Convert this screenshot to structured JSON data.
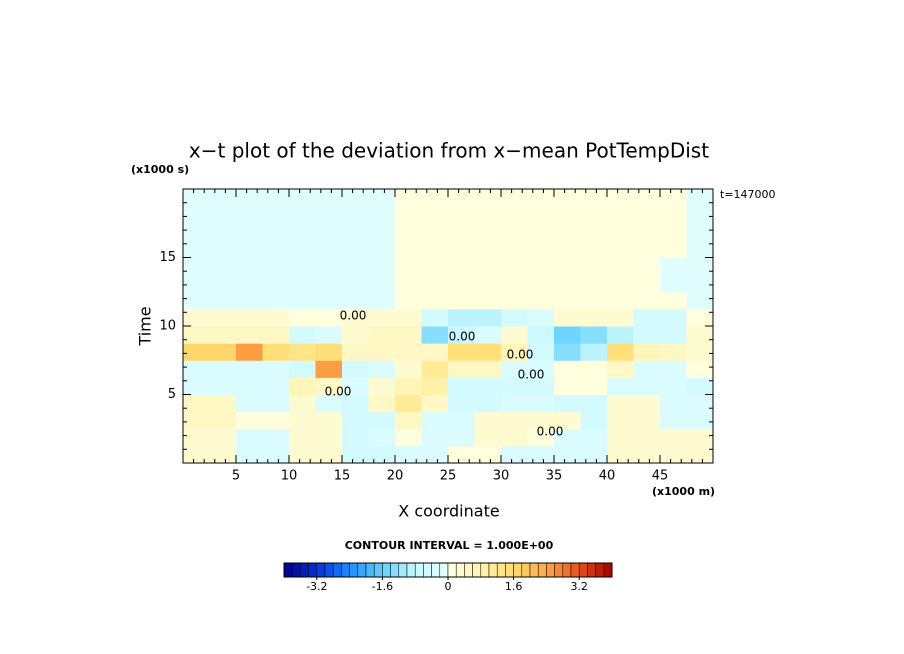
{
  "chart_data": {
    "type": "heatmap",
    "title": "x−t plot of the deviation from x−mean PotTempDist",
    "x_label": "X coordinate",
    "x_unit": "(x1000 m)",
    "y_label": "Time",
    "y_unit": "(x1000 s)",
    "time_stamp": "t=147000",
    "contour_interval": "CONTOUR INTERVAL = 1.000E+00",
    "contour_labels": [
      "0.00",
      "0.00",
      "0.00",
      "0.00",
      "0.00",
      "0.00"
    ],
    "xlim": [
      0,
      50
    ],
    "ylim": [
      0,
      20
    ],
    "xticks": [
      5,
      10,
      15,
      20,
      25,
      30,
      35,
      40,
      45
    ],
    "yticks": [
      5,
      10,
      15
    ],
    "x": [
      1.25,
      3.75,
      6.25,
      8.75,
      11.25,
      13.75,
      16.25,
      18.75,
      21.25,
      23.75,
      26.25,
      28.75,
      31.25,
      33.75,
      36.25,
      38.75,
      41.25,
      43.75,
      46.25,
      48.75
    ],
    "y": [
      0.625,
      1.875,
      3.125,
      4.375,
      5.625,
      6.875,
      8.125,
      9.375,
      10.625,
      11.875,
      13.125,
      14.375,
      15.625,
      16.875,
      18.125,
      19.375
    ],
    "z": [
      [
        0.2,
        0.2,
        -0.4,
        -0.4,
        0.2,
        0.2,
        -0.5,
        -0.5,
        -0.2,
        -0.2,
        0.1,
        0.1,
        -0.2,
        -0.2,
        -0.3,
        -0.3,
        0.2,
        0.2,
        0.3,
        0.3
      ],
      [
        0.3,
        0.3,
        -0.3,
        -0.3,
        0.3,
        0.3,
        -0.5,
        -0.3,
        0.1,
        -0.4,
        -0.4,
        0.3,
        0.3,
        0.1,
        -0.3,
        -0.3,
        0.3,
        0.3,
        0.2,
        0.2
      ],
      [
        0.5,
        0.5,
        0.1,
        0.1,
        0.3,
        0.3,
        -0.5,
        -0.5,
        0.4,
        -0.4,
        -0.4,
        0.2,
        0.2,
        0.3,
        0.3,
        -0.5,
        0.2,
        0.2,
        -0.3,
        -0.3
      ],
      [
        0.4,
        0.4,
        -0.3,
        -0.3,
        0.3,
        -0.2,
        -0.6,
        0.6,
        1.0,
        0.5,
        -0.5,
        -0.5,
        -0.2,
        -0.2,
        -0.6,
        -0.6,
        0.2,
        0.2,
        -0.4,
        -0.4
      ],
      [
        -0.2,
        -0.2,
        -0.2,
        -0.2,
        0.8,
        0.4,
        -0.3,
        0.3,
        0.8,
        0.9,
        -0.6,
        -0.6,
        -0.6,
        -0.6,
        0.1,
        0.1,
        -0.3,
        -0.3,
        -0.4,
        -0.5
      ],
      [
        -0.3,
        -0.3,
        -0.3,
        -0.3,
        -0.6,
        2.4,
        -0.5,
        -0.2,
        0.3,
        1.0,
        0.6,
        0.4,
        -0.3,
        -0.3,
        0.1,
        0.1,
        0.6,
        -0.3,
        -0.3,
        0.1
      ],
      [
        1.8,
        1.8,
        2.5,
        1.6,
        1.2,
        1.5,
        0.5,
        0.4,
        0.4,
        0.6,
        1.5,
        1.5,
        0.8,
        -0.6,
        -1.2,
        -1.0,
        1.5,
        0.8,
        0.6,
        0.2
      ],
      [
        0.6,
        0.6,
        0.5,
        0.5,
        -0.6,
        -0.4,
        0.3,
        0.5,
        0.5,
        -1.2,
        -0.8,
        -0.3,
        0.3,
        -0.8,
        -1.5,
        -1.2,
        -1.0,
        -0.6,
        -0.5,
        0.2
      ],
      [
        0.3,
        0.3,
        0.3,
        0.3,
        0.1,
        0.1,
        0.2,
        0.3,
        0.3,
        -0.5,
        -1.0,
        -1.0,
        -0.5,
        -0.3,
        0.2,
        0.2,
        0.2,
        -0.5,
        -0.5,
        0.1
      ],
      [
        -0.1,
        -0.1,
        -0.1,
        -0.1,
        -0.1,
        -0.1,
        -0.1,
        -0.1,
        0.1,
        0.1,
        0.1,
        0.1,
        0.1,
        0.1,
        0.1,
        0.1,
        0.1,
        0.1,
        0.1,
        -0.1
      ],
      [
        -0.1,
        -0.1,
        -0.1,
        -0.1,
        -0.1,
        -0.1,
        -0.1,
        -0.1,
        0.1,
        0.1,
        0.1,
        0.1,
        0.1,
        0.1,
        0.1,
        0.1,
        0.1,
        0.1,
        -0.1,
        -0.1
      ],
      [
        -0.1,
        -0.1,
        -0.1,
        -0.1,
        -0.1,
        -0.1,
        -0.1,
        -0.1,
        0.1,
        0.1,
        0.1,
        0.1,
        0.1,
        0.1,
        0.1,
        0.1,
        0.1,
        0.1,
        -0.1,
        -0.1
      ],
      [
        -0.1,
        -0.1,
        -0.1,
        -0.1,
        -0.1,
        -0.1,
        -0.1,
        -0.1,
        0.1,
        0.1,
        0.1,
        0.1,
        0.1,
        0.1,
        0.1,
        0.1,
        0.1,
        0.1,
        0.1,
        -0.1
      ],
      [
        -0.1,
        -0.1,
        -0.1,
        -0.1,
        -0.1,
        -0.1,
        -0.1,
        -0.1,
        0.1,
        0.1,
        0.1,
        0.1,
        0.1,
        0.1,
        0.1,
        0.1,
        0.1,
        0.1,
        0.1,
        -0.1
      ],
      [
        -0.1,
        -0.1,
        -0.1,
        -0.1,
        -0.1,
        -0.1,
        -0.1,
        -0.1,
        0.1,
        0.1,
        0.1,
        0.1,
        0.1,
        0.1,
        0.1,
        0.1,
        0.1,
        0.1,
        0.1,
        -0.1
      ],
      [
        -0.1,
        -0.1,
        -0.1,
        -0.1,
        -0.1,
        -0.1,
        -0.1,
        -0.1,
        0.1,
        0.1,
        0.1,
        0.1,
        0.1,
        0.1,
        0.1,
        0.1,
        0.1,
        0.1,
        0.1,
        -0.1
      ]
    ],
    "clim": [
      -4,
      4
    ],
    "cticks": [
      -3.2,
      -1.6,
      0,
      1.6,
      3.2
    ],
    "neg_colors": [
      "#000090",
      "#0030d8",
      "#1e8cff",
      "#60d0ff",
      "#c8f8ff",
      "#e4ffff"
    ],
    "pos_colors": [
      "#ffffe4",
      "#fff4b0",
      "#ffdc70",
      "#ffa848",
      "#e85018",
      "#a00000"
    ]
  }
}
